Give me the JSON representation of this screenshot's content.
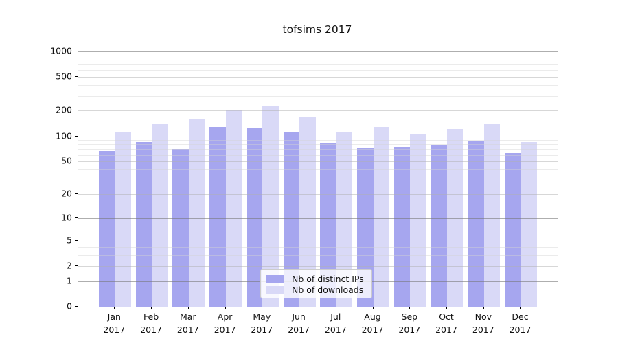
{
  "title": "tofsims 2017",
  "chart_data": {
    "type": "bar",
    "title": "tofsims 2017",
    "categories": [
      "Jan",
      "Feb",
      "Mar",
      "Apr",
      "May",
      "Jun",
      "Jul",
      "Aug",
      "Sep",
      "Oct",
      "Nov",
      "Dec"
    ],
    "x_tick_year": "2017",
    "series": [
      {
        "name": "Nb of distinct IPs",
        "color": "#a6a6ef",
        "values": [
          67,
          85,
          70,
          130,
          123,
          113,
          84,
          72,
          73,
          77,
          89,
          63
        ]
      },
      {
        "name": "Nb of downloads",
        "color": "#d9d9f7",
        "values": [
          111,
          140,
          160,
          203,
          224,
          170,
          112,
          130,
          106,
          122,
          140,
          86
        ]
      }
    ],
    "y_ticks": [
      1000,
      500,
      200,
      100,
      50,
      20,
      10,
      5,
      2,
      1,
      0
    ],
    "y_scale": "log10(value+1)",
    "ylim": [
      0,
      1350
    ],
    "grid": "on",
    "legend_position": "lower center"
  },
  "colors": {
    "ips_bar": "#a6a6ef",
    "downloads_bar": "#d9d9f7",
    "axis": "#000000",
    "legend_border": "#cccccc"
  }
}
